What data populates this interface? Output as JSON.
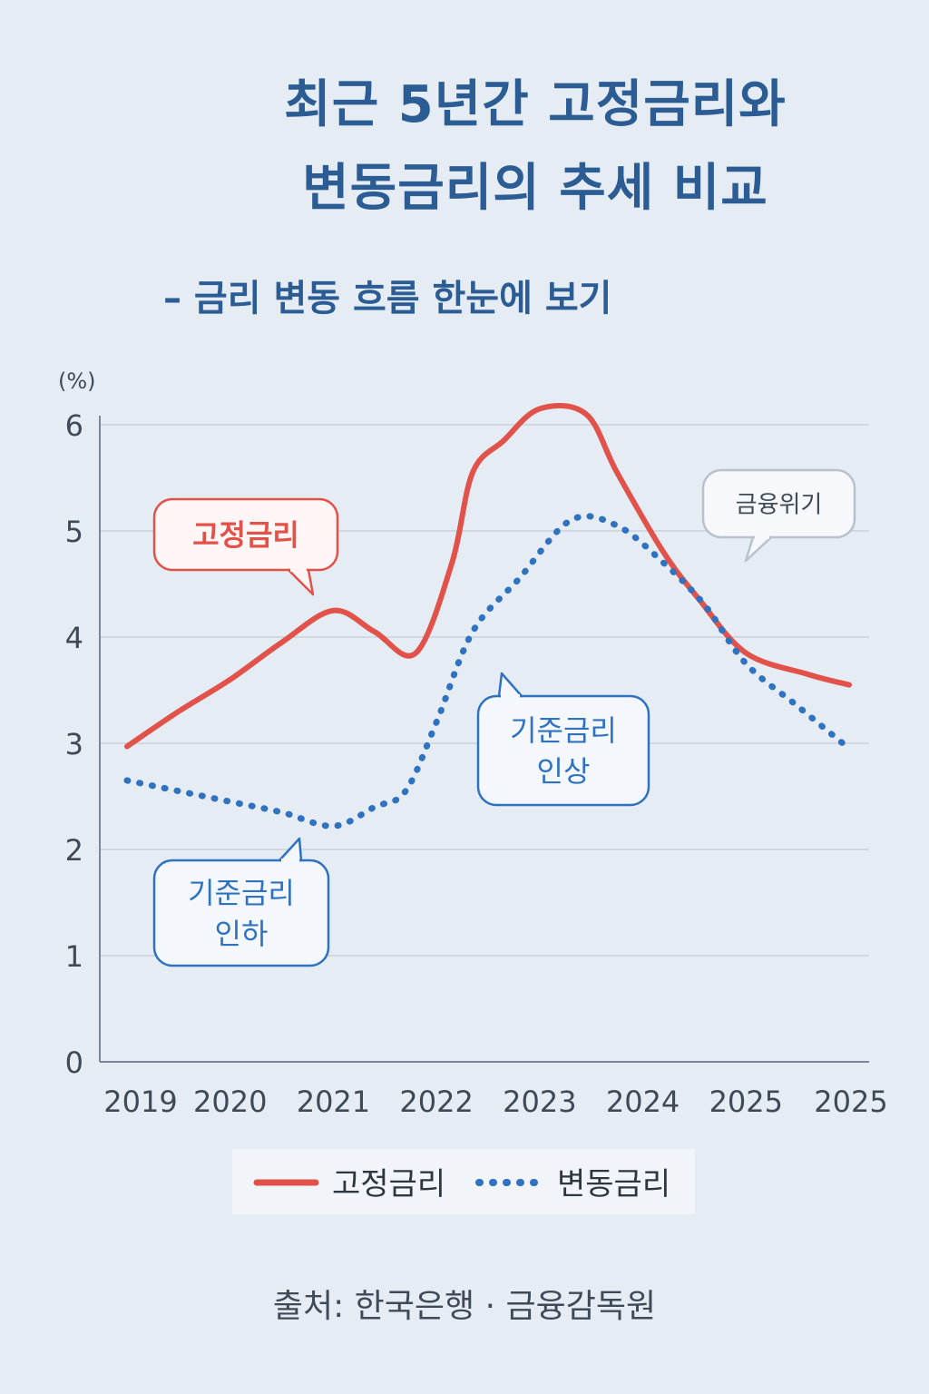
{
  "title_line1": "최근 5년간 고정금리와",
  "title_line2": "변동금리의 추세 비교",
  "subtitle": "– 금리 변동 흐름 한눈에 보기",
  "source": "출처: 한국은행 · 금융감독원",
  "colors": {
    "fixed": "#e0524a",
    "variable": "#2f72c0",
    "title": "#2b5c93"
  },
  "chart_data": {
    "type": "line",
    "title": "최근 5년간 고정금리와 변동금리의 추세 비교",
    "ylabel": "(%)",
    "xlabel": "",
    "ylim": [
      0,
      6
    ],
    "yticks": [
      0,
      1,
      2,
      3,
      4,
      5,
      6
    ],
    "categories": [
      "2019",
      "2020",
      "2021",
      "2022",
      "2023",
      "2024",
      "2025",
      "2025"
    ],
    "series": [
      {
        "name": "고정금리",
        "style": "solid",
        "x": [
          0,
          0.5,
          1,
          1.5,
          2,
          2.4,
          2.8,
          3.15,
          3.35,
          3.65,
          4.0,
          4.45,
          4.75,
          5.2,
          5.55,
          6.0,
          6.6,
          7.0
        ],
        "values": [
          2.97,
          3.3,
          3.6,
          3.95,
          4.25,
          4.05,
          3.85,
          4.7,
          5.55,
          5.85,
          6.15,
          6.1,
          5.55,
          4.8,
          4.35,
          3.85,
          3.65,
          3.55
        ]
      },
      {
        "name": "변동금리",
        "style": "dotted",
        "x": [
          0,
          0.5,
          1,
          1.5,
          2,
          2.4,
          2.7,
          3.0,
          3.35,
          3.8,
          4.3,
          4.75,
          5.2,
          5.6,
          6.0,
          6.5,
          7.0
        ],
        "values": [
          2.65,
          2.55,
          2.45,
          2.35,
          2.22,
          2.4,
          2.55,
          3.2,
          4.05,
          4.55,
          5.1,
          5.05,
          4.7,
          4.3,
          3.75,
          3.35,
          2.95
        ]
      }
    ],
    "annotations": [
      {
        "text": "고정금리",
        "color": "red"
      },
      {
        "text": "금융위기",
        "color": "gray"
      },
      {
        "text": "기준금리\n인상",
        "color": "blue"
      },
      {
        "text": "기준금리\n인하",
        "color": "blue"
      }
    ],
    "legend": [
      "고정금리",
      "변동금리"
    ],
    "legend_position": "bottom-center",
    "grid": true
  }
}
